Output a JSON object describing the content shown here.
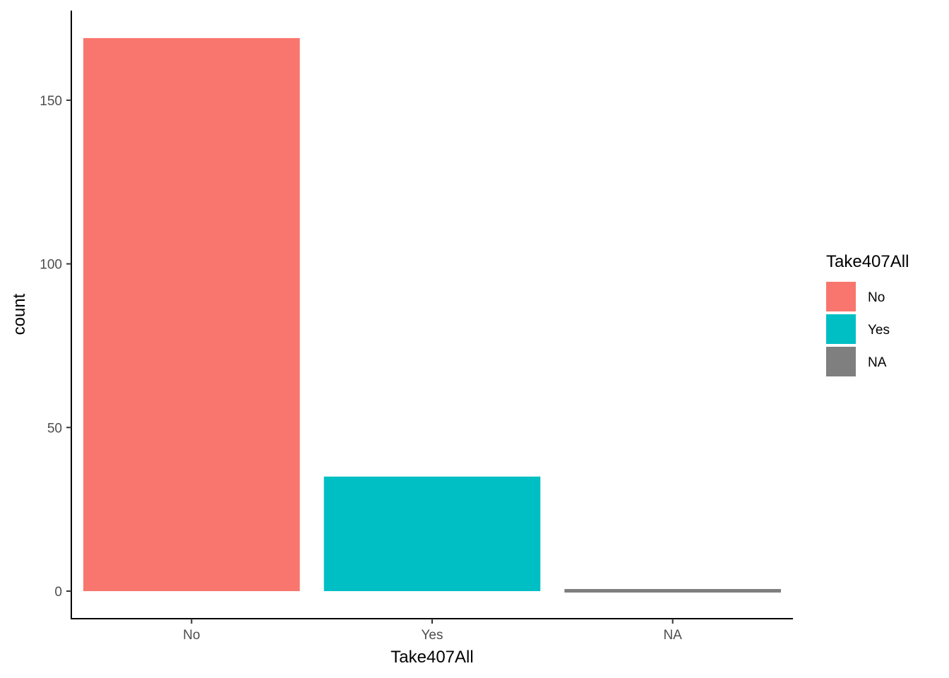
{
  "chart_data": {
    "type": "bar",
    "categories": [
      "No",
      "Yes",
      "NA"
    ],
    "values": [
      169,
      35,
      1
    ],
    "colors": [
      "#F8766D",
      "#00BFC4",
      "#7F7F7F"
    ],
    "xlabel": "Take407All",
    "ylabel": "count",
    "ylim": [
      0,
      172
    ],
    "yticks": [
      0,
      50,
      100,
      150
    ],
    "ytick_labels": [
      "0",
      "50",
      "100",
      "150"
    ],
    "grid": false,
    "legend": {
      "title": "Take407All",
      "placement": "right",
      "entries": [
        {
          "label": "No",
          "color": "#F8766D"
        },
        {
          "label": "Yes",
          "color": "#00BFC4"
        },
        {
          "label": "NA",
          "color": "#7F7F7F"
        }
      ]
    }
  }
}
